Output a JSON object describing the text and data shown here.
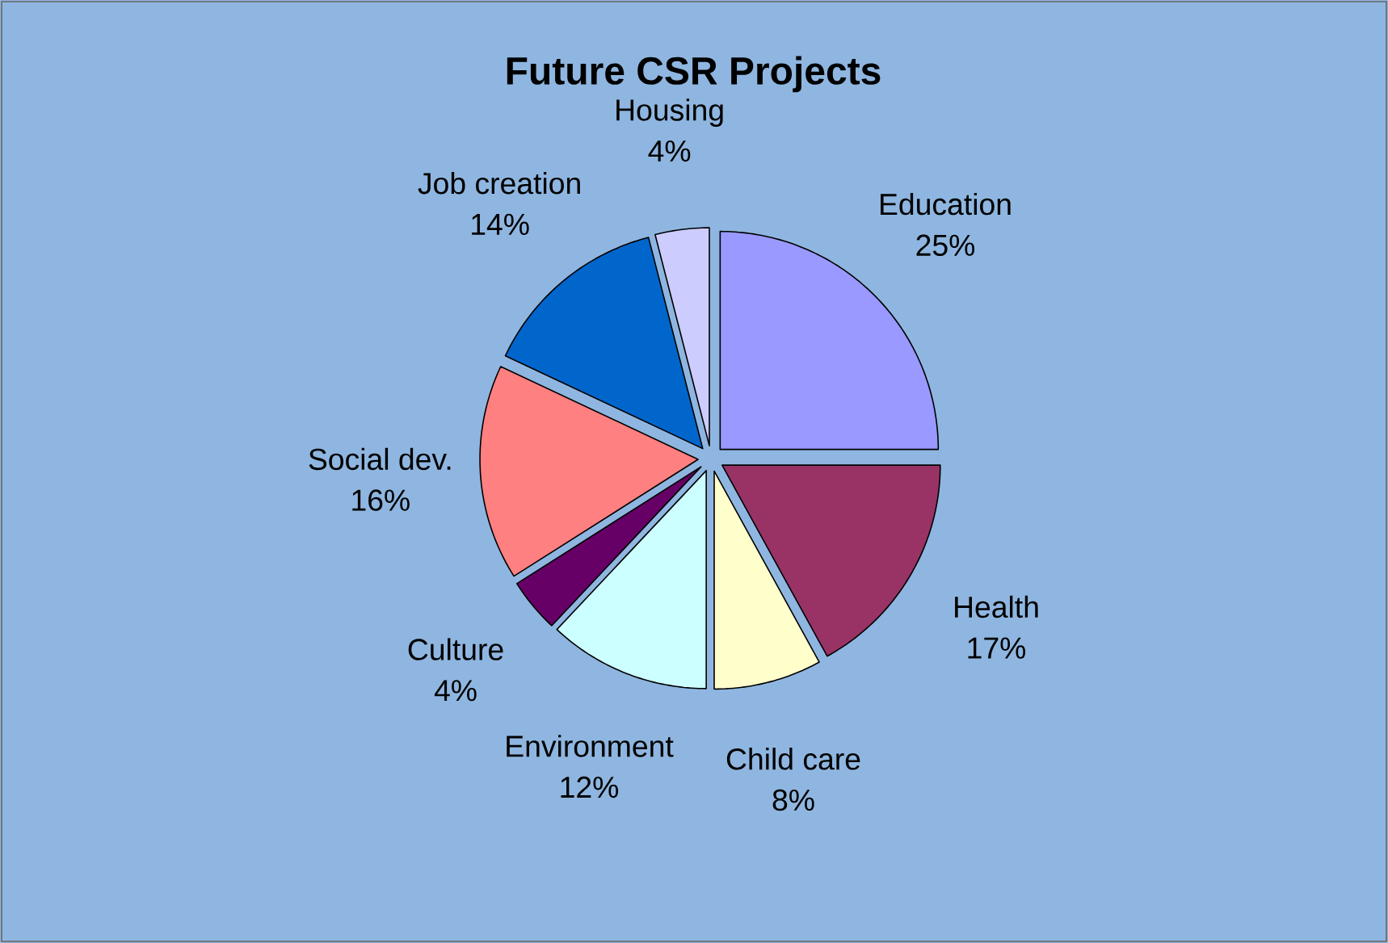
{
  "chart_data": {
    "type": "pie",
    "title": "Future CSR Projects",
    "categories": [
      "Education",
      "Health",
      "Child care",
      "Environment",
      "Culture",
      "Social dev.",
      "Job creation",
      "Housing"
    ],
    "values": [
      25,
      17,
      8,
      12,
      4,
      16,
      14,
      4
    ],
    "value_labels": [
      "25%",
      "17%",
      "8%",
      "12%",
      "4%",
      "16%",
      "14%",
      "4%"
    ],
    "colors": [
      "#9999ff",
      "#993366",
      "#ffffcc",
      "#ccffff",
      "#660066",
      "#ff8080",
      "#0066cc",
      "#ccccff"
    ]
  }
}
